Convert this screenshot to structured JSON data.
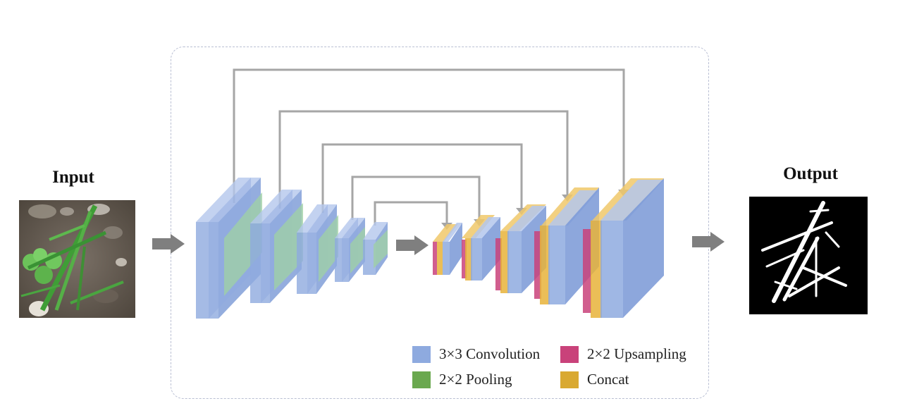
{
  "input_title": "Input",
  "output_title": "Output",
  "legend": [
    {
      "label": "3×3 Convolution",
      "color": "#8eaadf"
    },
    {
      "label": "2×2 Upsampling",
      "color": "#c9427a"
    },
    {
      "label": "2×2 Pooling",
      "color": "#6aa84f"
    },
    {
      "label": "Concat",
      "color": "#d9a931"
    }
  ],
  "colors": {
    "conv": "#8eaadf",
    "pool": "#9fd0a6",
    "upsample": "#c9427a",
    "concat": "#e8b33a",
    "skip_line": "#a6a6a6",
    "arrow": "#7f7f7f",
    "frame": "#b9bfd3"
  },
  "icons": [
    "input-photo",
    "output-mask",
    "flow-arrow"
  ]
}
